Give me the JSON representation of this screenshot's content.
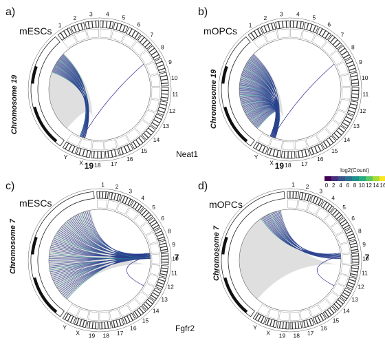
{
  "panels": [
    {
      "id": "a",
      "label": "a)",
      "cell": "mESCs",
      "chromosome_title": "Chromosome 19",
      "focus": "19",
      "focus_side": "bottom",
      "link_count": 28,
      "link_color": "#2c3e8f",
      "density": "low"
    },
    {
      "id": "b",
      "label": "b)",
      "cell": "mOPCs",
      "chromosome_title": "Chromosome 19",
      "focus": "19",
      "focus_side": "bottom",
      "link_count": 80,
      "link_color": "#2c3e8f",
      "density": "high"
    },
    {
      "id": "c",
      "label": "c)",
      "cell": "mESCs",
      "chromosome_title": "Chromosome 7",
      "focus": "7",
      "focus_side": "right",
      "link_count": 60,
      "link_color": "#2c3e8f",
      "density": "high"
    },
    {
      "id": "d",
      "label": "d)",
      "cell": "mOPCs",
      "chromosome_title": "Chromosome 7",
      "focus": "7",
      "focus_side": "right",
      "link_count": 18,
      "link_color": "#2c3e8f",
      "density": "low"
    }
  ],
  "genes": {
    "top_row": "Neat1",
    "bottom_row": "Fgfr2"
  },
  "chromosome_labels_ring": [
    "1",
    "2",
    "3",
    "4",
    "5",
    "6",
    "7",
    "8",
    "9",
    "10",
    "11",
    "12",
    "13",
    "14",
    "15",
    "16",
    "17",
    "18",
    "19",
    "X",
    "Y"
  ],
  "legend": {
    "title": "log2(Count)",
    "ticks": [
      "0",
      "2",
      "4",
      "6",
      "8",
      "10",
      "12",
      "14",
      "16"
    ],
    "colors": [
      "#440154",
      "#472f7d",
      "#3b528b",
      "#2c728e",
      "#21908d",
      "#27ad81",
      "#5cc863",
      "#aadc32",
      "#fde725"
    ]
  }
}
